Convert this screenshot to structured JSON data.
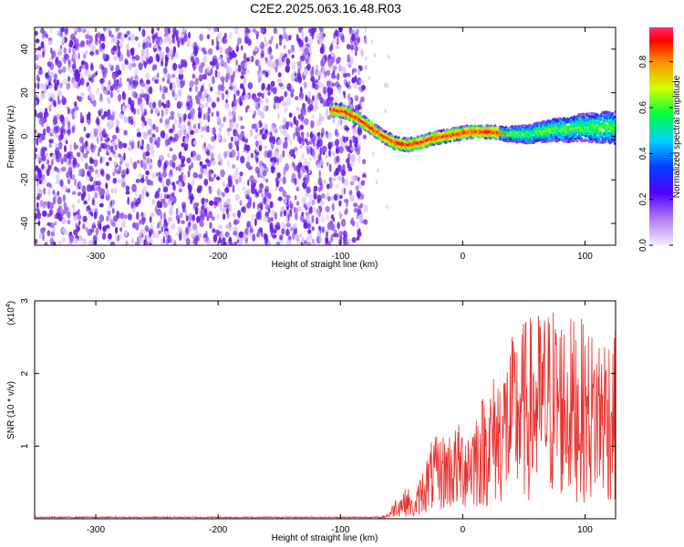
{
  "figure": {
    "title": "C2E2.2025.063.16.48.R03"
  },
  "chart_data": [
    {
      "type": "heatmap",
      "xlabel": "Height of straight line (km)",
      "ylabel": "Frequency (Hz)",
      "xlim": [
        -350,
        125
      ],
      "ylim": [
        -50,
        50
      ],
      "xticks": [
        -300,
        -200,
        -100,
        0,
        100
      ],
      "yticks": [
        -40,
        -20,
        0,
        20,
        40
      ],
      "colorbar": {
        "label": "Normalized spectral amplitude",
        "range": [
          0.0,
          0.95
        ],
        "ticks": [
          0.0,
          0.2,
          0.4,
          0.6,
          0.8
        ],
        "tick_labels": [
          "0.0",
          "0.2",
          "0.4",
          "0.6",
          "0.8"
        ],
        "colormap": [
          "#f5ecff",
          "#8a2be2",
          "#0000ff",
          "#00c8ff",
          "#00ff66",
          "#ffff00",
          "#ff8000",
          "#ff0000",
          "#ff1a66"
        ]
      },
      "noise_region": {
        "x_start": -350,
        "x_end": -85,
        "amplitude": 0.05
      },
      "signal_track": [
        {
          "x": -105,
          "y": 12
        },
        {
          "x": -95,
          "y": 11
        },
        {
          "x": -85,
          "y": 8
        },
        {
          "x": -75,
          "y": 4
        },
        {
          "x": -65,
          "y": 0
        },
        {
          "x": -55,
          "y": -3
        },
        {
          "x": -45,
          "y": -4
        },
        {
          "x": -35,
          "y": -3
        },
        {
          "x": -25,
          "y": -1
        },
        {
          "x": -15,
          "y": 0
        },
        {
          "x": -5,
          "y": 1
        },
        {
          "x": 5,
          "y": 2
        },
        {
          "x": 15,
          "y": 2
        },
        {
          "x": 25,
          "y": 2
        },
        {
          "x": 35,
          "y": 1
        },
        {
          "x": 45,
          "y": 1
        },
        {
          "x": 55,
          "y": 1
        },
        {
          "x": 65,
          "y": 2
        },
        {
          "x": 75,
          "y": 3
        },
        {
          "x": 85,
          "y": 3
        },
        {
          "x": 95,
          "y": 4
        },
        {
          "x": 105,
          "y": 4
        },
        {
          "x": 115,
          "y": 4
        },
        {
          "x": 125,
          "y": 4
        }
      ]
    },
    {
      "type": "line",
      "xlabel": "Height of straight line (km)",
      "ylabel": "SNR (10 * v/v)",
      "yscale_label": "(x10",
      "yscale_exponent": "4",
      "yscale_close": ")",
      "xlim": [
        -350,
        125
      ],
      "ylim": [
        0,
        3
      ],
      "xticks": [
        -300,
        -200,
        -100,
        0,
        100
      ],
      "yticks": [
        1,
        2,
        3
      ],
      "series_color": "#e8302c",
      "envelope": [
        {
          "x": -350,
          "y": 0.0
        },
        {
          "x": -70,
          "y": 0.0
        },
        {
          "x": -60,
          "y": 0.1
        },
        {
          "x": -55,
          "y": 0.3
        },
        {
          "x": -45,
          "y": 0.45
        },
        {
          "x": -40,
          "y": 0.2
        },
        {
          "x": -35,
          "y": 0.6
        },
        {
          "x": -25,
          "y": 1.1
        },
        {
          "x": -15,
          "y": 1.2
        },
        {
          "x": -5,
          "y": 1.3
        },
        {
          "x": 5,
          "y": 1.4
        },
        {
          "x": 15,
          "y": 1.7
        },
        {
          "x": 25,
          "y": 2.0
        },
        {
          "x": 35,
          "y": 2.3
        },
        {
          "x": 45,
          "y": 2.7
        },
        {
          "x": 55,
          "y": 2.8
        },
        {
          "x": 65,
          "y": 2.9
        },
        {
          "x": 75,
          "y": 3.0
        },
        {
          "x": 85,
          "y": 2.8
        },
        {
          "x": 95,
          "y": 2.8
        },
        {
          "x": 105,
          "y": 2.6
        },
        {
          "x": 115,
          "y": 2.7
        },
        {
          "x": 125,
          "y": 2.6
        }
      ]
    }
  ]
}
